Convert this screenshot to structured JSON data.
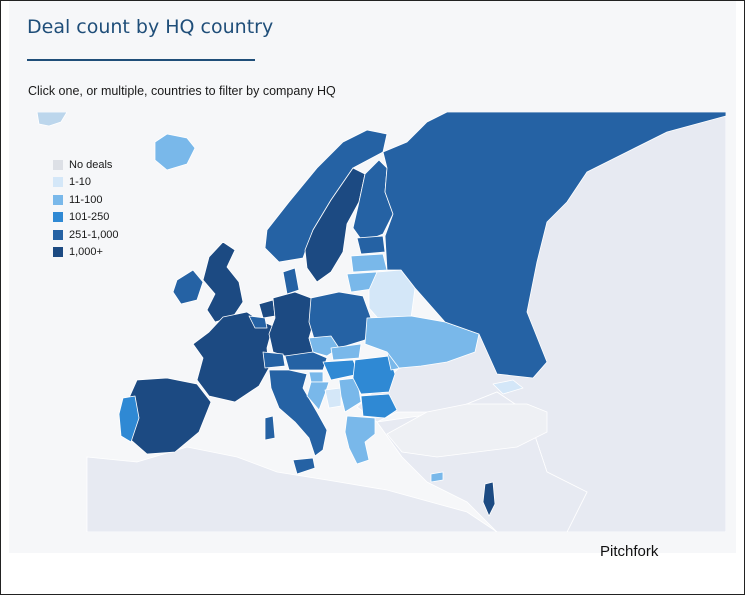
{
  "header": {
    "title": "Deal count by HQ country",
    "subtitle": "Click one, or multiple, countries to filter by company HQ"
  },
  "legend": {
    "items": [
      {
        "label": "No deals",
        "color": "#dde0e6"
      },
      {
        "label": "1-10",
        "color": "#d4e7f8"
      },
      {
        "label": "11-100",
        "color": "#79b8ea"
      },
      {
        "label": "101-250",
        "color": "#2f89d4"
      },
      {
        "label": "251-1,000",
        "color": "#2562a4"
      },
      {
        "label": "1,000+",
        "color": "#1c4a82"
      }
    ]
  },
  "countries": [
    {
      "name": "United Kingdom",
      "bucket": "1,000+"
    },
    {
      "name": "Ireland",
      "bucket": "251-1,000"
    },
    {
      "name": "France",
      "bucket": "1,000+"
    },
    {
      "name": "Spain",
      "bucket": "1,000+"
    },
    {
      "name": "Portugal",
      "bucket": "101-250"
    },
    {
      "name": "Germany",
      "bucket": "1,000+"
    },
    {
      "name": "Netherlands",
      "bucket": "1,000+"
    },
    {
      "name": "Belgium",
      "bucket": "251-1,000"
    },
    {
      "name": "Switzerland",
      "bucket": "251-1,000"
    },
    {
      "name": "Italy",
      "bucket": "251-1,000"
    },
    {
      "name": "Austria",
      "bucket": "251-1,000"
    },
    {
      "name": "Denmark",
      "bucket": "251-1,000"
    },
    {
      "name": "Norway",
      "bucket": "251-1,000"
    },
    {
      "name": "Sweden",
      "bucket": "1,000+"
    },
    {
      "name": "Finland",
      "bucket": "251-1,000"
    },
    {
      "name": "Iceland",
      "bucket": "11-100"
    },
    {
      "name": "Poland",
      "bucket": "251-1,000"
    },
    {
      "name": "Czechia",
      "bucket": "11-100"
    },
    {
      "name": "Slovakia",
      "bucket": "11-100"
    },
    {
      "name": "Hungary",
      "bucket": "101-250"
    },
    {
      "name": "Romania",
      "bucket": "101-250"
    },
    {
      "name": "Bulgaria",
      "bucket": "101-250"
    },
    {
      "name": "Greece",
      "bucket": "11-100"
    },
    {
      "name": "Ukraine",
      "bucket": "11-100"
    },
    {
      "name": "Belarus",
      "bucket": "1-10"
    },
    {
      "name": "Lithuania",
      "bucket": "11-100"
    },
    {
      "name": "Latvia",
      "bucket": "11-100"
    },
    {
      "name": "Estonia",
      "bucket": "251-1,000"
    },
    {
      "name": "Moldova",
      "bucket": "11-100"
    },
    {
      "name": "Serbia",
      "bucket": "11-100"
    },
    {
      "name": "Croatia",
      "bucket": "11-100"
    },
    {
      "name": "Slovenia",
      "bucket": "11-100"
    },
    {
      "name": "Bosnia and Herzegovina",
      "bucket": "1-10"
    },
    {
      "name": "Russia",
      "bucket": "251-1,000"
    },
    {
      "name": "Cyprus",
      "bucket": "11-100"
    },
    {
      "name": "Israel",
      "bucket": "1,000+"
    },
    {
      "name": "Georgia",
      "bucket": "1-10"
    },
    {
      "name": "Turkey",
      "bucket": "No deals"
    }
  ],
  "credit": "Pitchfork"
}
